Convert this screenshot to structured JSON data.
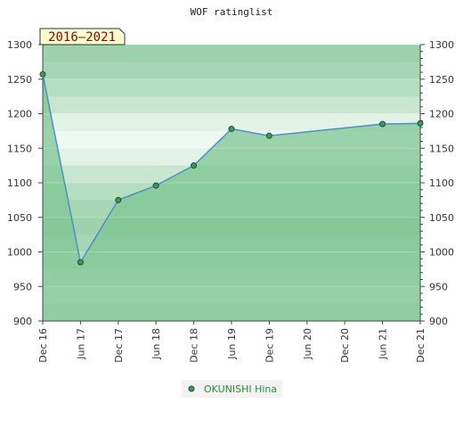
{
  "chart_data": {
    "type": "line",
    "title": "WOF ratinglist",
    "date_range_label": "2016–2021",
    "categories": [
      "Dec 16",
      "Jun 17",
      "Dec 17",
      "Jun 18",
      "Dec 18",
      "Jun 19",
      "Dec 19",
      "Jun 20",
      "Dec 20",
      "Jun 21",
      "Dec 21"
    ],
    "y_ticks": [
      900,
      950,
      1000,
      1050,
      1100,
      1150,
      1200,
      1250,
      1300
    ],
    "ylim": [
      900,
      1300
    ],
    "series": [
      {
        "name": "OKUNISHI Hina",
        "x": [
          "Dec 16",
          "Jun 17",
          "Dec 17",
          "Jun 18",
          "Dec 18",
          "Jun 19",
          "Dec 19",
          "Jun 21",
          "Dec 21"
        ],
        "values": [
          1257,
          985,
          1075,
          1096,
          1125,
          1178,
          1168,
          1185,
          1186
        ]
      }
    ],
    "legend": "bottom-center",
    "grid": true
  },
  "colors": {
    "line": "#4a90c8",
    "marker": "#3a9a5a",
    "fill": "#7dc693",
    "legend_text": "#2e8b3a",
    "range_label_bg": "#ffffd0"
  }
}
